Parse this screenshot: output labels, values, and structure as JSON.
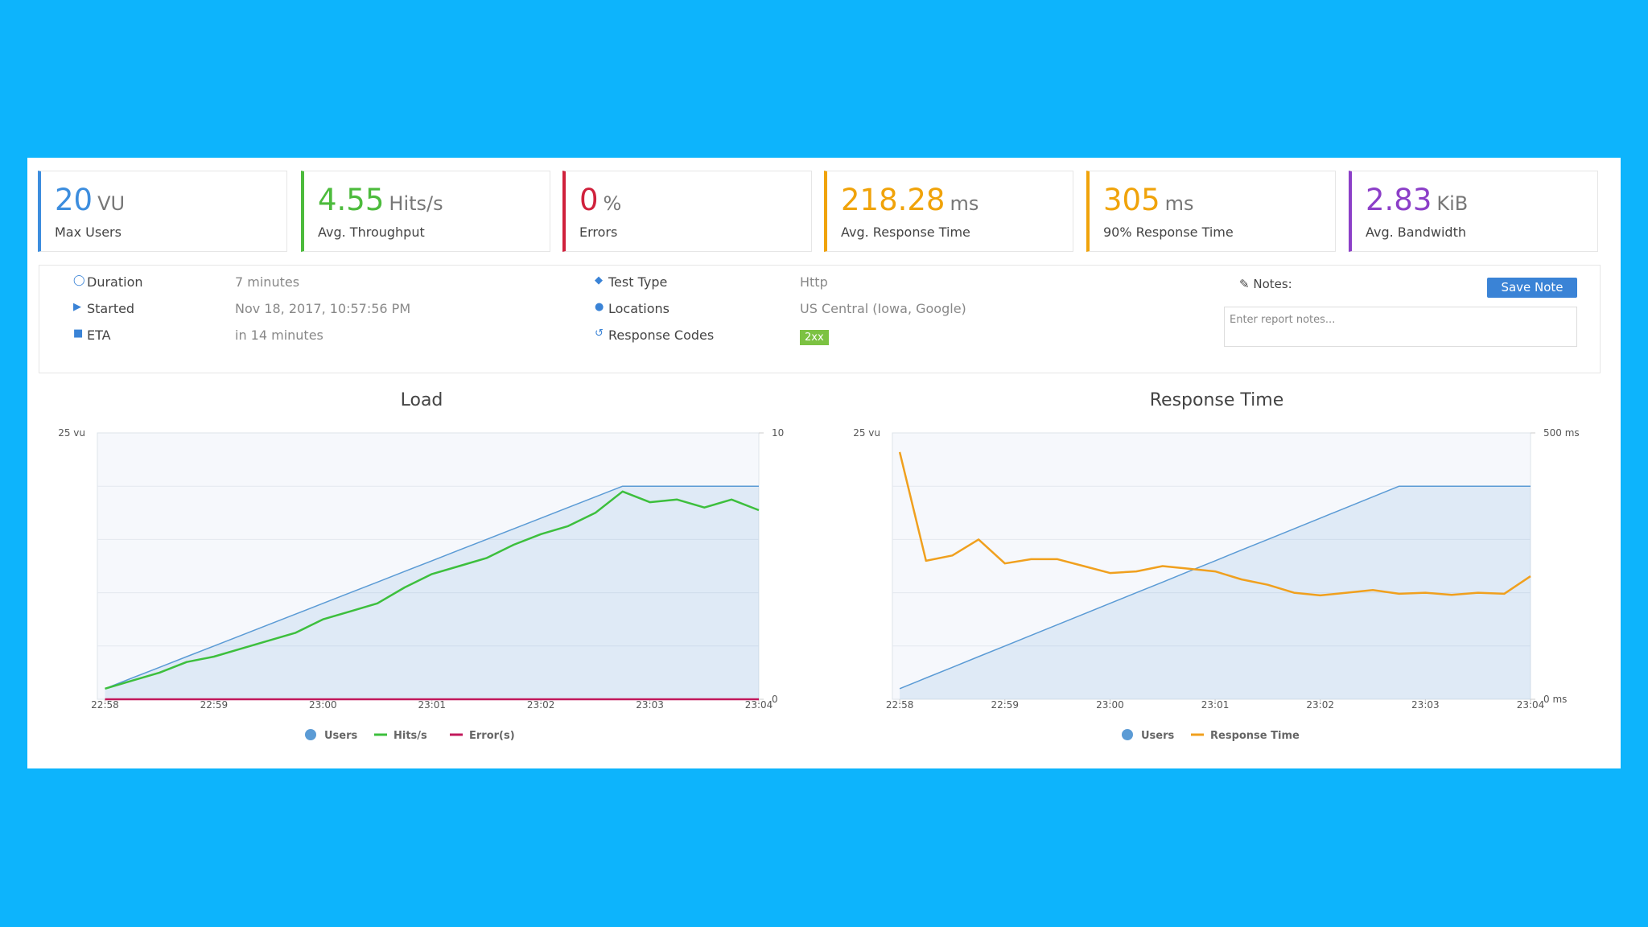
{
  "cards": [
    {
      "value": "20",
      "unit": "VU",
      "label": "Max Users",
      "color": "#3c8dde"
    },
    {
      "value": "4.55",
      "unit": "Hits/s",
      "label": "Avg. Throughput",
      "color": "#4cbb3c"
    },
    {
      "value": "0",
      "unit": "%",
      "label": "Errors",
      "color": "#d0213c"
    },
    {
      "value": "218.28",
      "unit": "ms",
      "label": "Avg. Response Time",
      "color": "#f0a30a"
    },
    {
      "value": "305",
      "unit": "ms",
      "label": "90% Response Time",
      "color": "#f0a30a"
    },
    {
      "value": "2.83",
      "unit": "KiB",
      "label": "Avg. Bandwidth",
      "color": "#8c3fc8"
    }
  ],
  "details": [
    {
      "label": "Duration",
      "value": "7 minutes"
    },
    {
      "label": "Started",
      "value": "Nov 18, 2017, 10:57:56 PM"
    },
    {
      "label": "ETA",
      "value": "in 14 minutes"
    },
    {
      "label": "Test Type",
      "value": "Http"
    },
    {
      "label": "Locations",
      "value": "US Central (Iowa, Google)"
    },
    {
      "label": "Response Codes",
      "value": "2xx"
    }
  ],
  "notes": {
    "label": "Notes:",
    "button": "Save Note",
    "placeholder": "Enter report notes..."
  },
  "chart_data": [
    {
      "type": "line",
      "title": "Load",
      "x": [
        0,
        0.25,
        0.5,
        0.75,
        1,
        1.25,
        1.5,
        1.75,
        2,
        2.25,
        2.5,
        2.75,
        3,
        3.25,
        3.5,
        3.75,
        4,
        4.25,
        4.5,
        4.75,
        5,
        5.25,
        5.5,
        5.75,
        6
      ],
      "xlim": [
        -0.07,
        6
      ],
      "xticks": [
        {
          "value": 0,
          "label": "22:58"
        },
        {
          "value": 1,
          "label": "22:59"
        },
        {
          "value": 2,
          "label": "23:00"
        },
        {
          "value": 3,
          "label": "23:01"
        },
        {
          "value": 4,
          "label": "23:02"
        },
        {
          "value": 5,
          "label": "23:03"
        },
        {
          "value": 6,
          "label": "23:04"
        }
      ],
      "ylim": [
        0,
        25
      ],
      "yticks": [
        {
          "value": 25,
          "label": "25 vu"
        }
      ],
      "y2lim": [
        0,
        10
      ],
      "y2ticks": [
        0,
        10
      ],
      "series": [
        {
          "name": "Users",
          "color": "#5b9bd5",
          "values": [
            1,
            2,
            3,
            4,
            5,
            6,
            7,
            8,
            9,
            10,
            11,
            12,
            13,
            14,
            15,
            16,
            17,
            18,
            19,
            20,
            20,
            20,
            20,
            20,
            20
          ]
        },
        {
          "name": "Hits/s",
          "color": "#3dbf3d",
          "axis": "y2",
          "values": [
            0.4,
            0.7,
            1.0,
            1.4,
            1.6,
            1.9,
            2.2,
            2.5,
            3.0,
            3.3,
            3.6,
            4.2,
            4.7,
            5.0,
            5.3,
            5.8,
            6.2,
            6.5,
            7.0,
            7.8,
            7.4,
            7.5,
            7.2,
            7.5,
            7.1
          ]
        },
        {
          "name": "Error(s)",
          "color": "#c2185b",
          "axis": "y2",
          "values": [
            0,
            0,
            0,
            0,
            0,
            0,
            0,
            0,
            0,
            0,
            0,
            0,
            0,
            0,
            0,
            0,
            0,
            0,
            0,
            0,
            0,
            0,
            0,
            0,
            0
          ]
        }
      ]
    },
    {
      "type": "line",
      "title": "Response Time",
      "x": [
        0,
        0.25,
        0.5,
        0.75,
        1,
        1.25,
        1.5,
        1.75,
        2,
        2.25,
        2.5,
        2.75,
        3,
        3.25,
        3.5,
        3.75,
        4,
        4.25,
        4.5,
        4.75,
        5,
        5.25,
        5.5,
        5.75,
        6
      ],
      "xlim": [
        -0.07,
        6
      ],
      "xticks": [
        {
          "value": 0,
          "label": "22:58"
        },
        {
          "value": 1,
          "label": "22:59"
        },
        {
          "value": 2,
          "label": "23:00"
        },
        {
          "value": 3,
          "label": "23:01"
        },
        {
          "value": 4,
          "label": "23:02"
        },
        {
          "value": 5,
          "label": "23:03"
        },
        {
          "value": 6,
          "label": "23:04"
        }
      ],
      "ylim": [
        0,
        25
      ],
      "yticks": [
        {
          "value": 25,
          "label": "25 vu"
        }
      ],
      "y2lim": [
        0,
        500
      ],
      "y2ticks": [
        {
          "value": 0,
          "label": "0 ms"
        },
        {
          "value": 500,
          "label": "500 ms"
        }
      ],
      "series": [
        {
          "name": "Users",
          "color": "#5b9bd5",
          "values": [
            1,
            2,
            3,
            4,
            5,
            6,
            7,
            8,
            9,
            10,
            11,
            12,
            13,
            14,
            15,
            16,
            17,
            18,
            19,
            20,
            20,
            20,
            20,
            20,
            20
          ]
        },
        {
          "name": "Response Time",
          "color": "#f0a01e",
          "axis": "y2",
          "values": [
            464,
            260,
            270,
            300,
            255,
            263,
            263,
            250,
            237,
            240,
            250,
            245,
            240,
            225,
            215,
            200,
            195,
            200,
            205,
            198,
            200,
            196,
            200,
            198,
            231
          ]
        }
      ]
    }
  ]
}
